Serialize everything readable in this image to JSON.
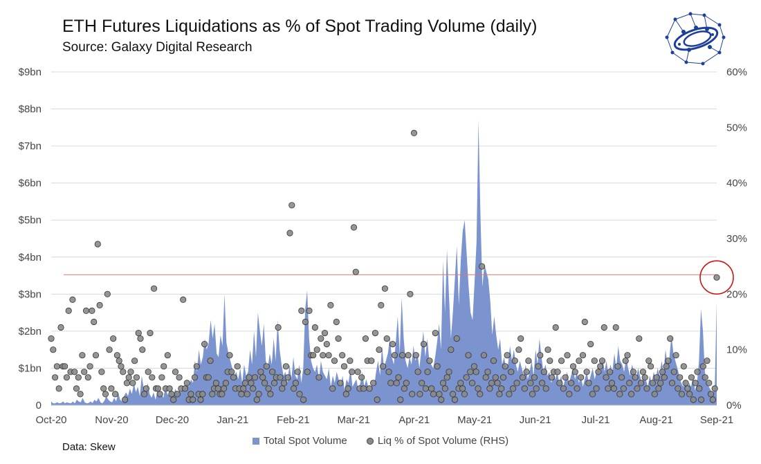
{
  "chart_data": {
    "type": "area+scatter",
    "title": "ETH Futures Liquidations as % of Spot Trading Volume (daily)",
    "subtitle": "Source: Galaxy Digital Research",
    "source_note": "Data: Skew",
    "categories": [
      "Oct-20",
      "Nov-20",
      "Dec-20",
      "Jan-21",
      "Feb-21",
      "Mar-21",
      "Apr-21",
      "May-21",
      "Jun-21",
      "Jul-21",
      "Aug-21",
      "Sep-21"
    ],
    "y_left": {
      "ticks": [
        "0",
        "$1bn",
        "$2bn",
        "$3bn",
        "$4bn",
        "$5bn",
        "$6bn",
        "$7bn",
        "$8bn",
        "$9bn"
      ],
      "range": [
        0,
        9
      ],
      "unit": "bn"
    },
    "y_right": {
      "ticks": [
        "0%",
        "10%",
        "20%",
        "30%",
        "40%",
        "50%",
        "60%"
      ],
      "range": [
        0,
        60
      ],
      "unit": "%"
    },
    "reference_line_pct": 23.5,
    "highlight_pct": 23,
    "legend": [
      "Total Spot Volume",
      "Liq % of Spot Volume (RHS)"
    ],
    "colors": {
      "area": "#7b93cf",
      "dot_fill": "#8a8a8a",
      "dot_stroke": "#333333",
      "ref_line": "#e07575",
      "highlight": "#cc1111"
    },
    "series": [
      {
        "name": "Total Spot Volume",
        "axis": "left",
        "values": [
          0.1,
          0.05,
          0.05,
          0.08,
          0.05,
          0.06,
          0.1,
          0.05,
          0.08,
          0.06,
          0.05,
          0.1,
          0.05,
          0.15,
          0.1,
          0.08,
          0.2,
          0.08,
          0.05,
          0.06,
          0.1,
          0.06,
          0.15,
          0.1,
          0.2,
          0.08,
          0.05,
          0.12,
          0.25,
          0.15,
          0.1,
          0.08,
          0.2,
          0.1,
          0.35,
          0.15,
          0.1,
          0.25,
          0.35,
          0.25,
          0.45,
          0.3,
          0.6,
          0.35,
          0.5,
          0.25,
          0.8,
          0.45,
          0.3,
          0.6,
          0.3,
          0.2,
          0.35,
          0.15,
          0.4,
          0.25,
          0.3,
          0.2,
          0.5,
          0.3,
          0.25,
          0.5,
          0.2,
          0.45,
          0.3,
          0.4,
          0.35,
          0.5,
          0.45,
          0.6,
          0.5,
          0.7,
          0.6,
          1.2,
          0.9,
          1.5,
          1.1,
          1.3,
          1.8,
          1.5,
          1.7,
          2.3,
          1.8,
          2.2,
          1.4,
          1.3,
          1.9,
          1.6,
          3.0,
          1.7,
          1.4,
          1.2,
          1.0,
          0.8,
          0.9,
          0.7,
          1.0,
          0.6,
          1.1,
          0.8,
          0.9,
          1.5,
          1.1,
          2.0,
          1.3,
          2.5,
          2.0,
          1.6,
          2.2,
          1.2,
          1.0,
          1.4,
          1.1,
          1.8,
          1.2,
          2.3,
          1.5,
          1.1,
          0.8,
          0.9,
          0.6,
          1.1,
          0.7,
          1.3,
          0.8,
          0.7,
          1.1,
          0.6,
          1.0,
          2.6,
          3.1,
          1.8,
          1.2,
          1.0,
          0.9,
          1.1,
          0.7,
          1.2,
          0.9,
          0.8,
          0.7,
          1.0,
          0.5,
          0.8,
          0.6,
          0.9,
          0.7,
          0.5,
          0.8,
          0.4,
          0.7,
          0.6,
          1.0,
          0.5,
          0.6,
          0.7,
          0.4,
          0.6,
          0.9,
          0.5,
          0.7,
          0.5,
          0.4,
          0.6,
          0.5,
          0.9,
          1.2,
          0.8,
          1.6,
          1.0,
          1.2,
          1.4,
          1.8,
          1.3,
          1.1,
          1.7,
          2.4,
          1.4,
          2.9,
          1.8,
          1.2,
          1.0,
          1.3,
          1.1,
          1.6,
          1.2,
          1.4,
          1.0,
          1.5,
          2.0,
          1.3,
          1.8,
          1.2,
          1.1,
          1.0,
          1.3,
          1.7,
          2.2,
          1.5,
          3.9,
          2.5,
          4.2,
          3.0,
          1.8,
          2.5,
          3.4,
          4.3,
          2.7,
          3.9,
          4.7,
          5.0,
          4.1,
          3.2,
          2.5,
          2.3,
          3.3,
          4.4,
          7.7,
          5.1,
          3.2,
          3.8,
          3.6,
          3.4,
          2.8,
          1.9,
          2.4,
          1.9,
          1.5,
          1.8,
          1.1,
          1.3,
          1.0,
          1.1,
          1.6,
          1.2,
          1.5,
          1.1,
          0.9,
          1.2,
          1.0,
          0.8,
          1.1,
          0.7,
          0.9,
          1.2,
          0.8,
          1.5,
          1.1,
          1.8,
          1.3,
          0.9,
          1.1,
          0.8,
          0.9,
          0.6,
          0.8,
          0.7,
          0.9,
          0.6,
          0.8,
          0.5,
          0.7,
          0.9,
          0.6,
          0.8,
          1.0,
          0.7,
          0.9,
          0.6,
          0.8,
          0.5,
          0.7,
          0.9,
          0.6,
          0.8,
          1.0,
          0.7,
          0.9,
          1.1,
          0.8,
          1.3,
          0.9,
          1.2,
          0.8,
          1.1,
          0.9,
          1.4,
          1.0,
          1.6,
          1.2,
          1.1,
          0.9,
          1.3,
          1.0,
          0.8,
          1.1,
          0.9,
          0.7,
          1.0,
          0.8,
          0.6,
          0.9,
          0.7,
          0.5,
          0.8,
          0.6,
          0.9,
          0.7,
          1.0,
          0.8,
          1.2,
          0.9,
          1.5,
          1.1,
          1.3,
          1.9,
          1.4,
          1.2,
          1.0,
          0.8,
          0.6,
          0.5,
          0.7,
          0.4,
          0.6,
          0.5,
          0.8,
          0.4,
          0.6,
          1.2,
          2.6,
          2.0,
          0.9,
          0.6,
          0.5,
          0.4,
          0.3,
          0.5,
          2.8
        ]
      },
      {
        "name": "Liq % of Spot Volume (RHS)",
        "axis": "right",
        "values": [
          12,
          10,
          5,
          7,
          3,
          14,
          7,
          7,
          5,
          17,
          6,
          19,
          6,
          3,
          5,
          2,
          9,
          6,
          17,
          5,
          7,
          17,
          15,
          9,
          29,
          18,
          6,
          3,
          2,
          20,
          10,
          3,
          12,
          2,
          9,
          8,
          7,
          6,
          1,
          4,
          5,
          6,
          4,
          8,
          5,
          13,
          12,
          10,
          2,
          3,
          6,
          13,
          5,
          21,
          3,
          3,
          2,
          5,
          7,
          3,
          9,
          3,
          2,
          1,
          6,
          2,
          5,
          3,
          19,
          3,
          4,
          1,
          2,
          1,
          5,
          7,
          2,
          1,
          2,
          11,
          5,
          5,
          8,
          2,
          3,
          4,
          3,
          2,
          2,
          3,
          4,
          6,
          9,
          6,
          5,
          3,
          7,
          3,
          2,
          3,
          4,
          2,
          5,
          4,
          3,
          5,
          1,
          2,
          6,
          5,
          4,
          7,
          3,
          2,
          6,
          4,
          5,
          14,
          5,
          3,
          4,
          7,
          5,
          31,
          36,
          3,
          4,
          6,
          2,
          17,
          1,
          15,
          6,
          17,
          9,
          9,
          14,
          10,
          5,
          12,
          9,
          13,
          11,
          9,
          18,
          3,
          8,
          15,
          12,
          4,
          9,
          7,
          2,
          3,
          8,
          6,
          32,
          24,
          6,
          3,
          5,
          3,
          12,
          8,
          3,
          8,
          4,
          13,
          1,
          10,
          18,
          7,
          21,
          12,
          6,
          4,
          11,
          9,
          4,
          5,
          1,
          9,
          3,
          4,
          9,
          20,
          2,
          49,
          9,
          6,
          2,
          4,
          11,
          3,
          6,
          8,
          3,
          2,
          13,
          7,
          2,
          1,
          4,
          3,
          5,
          6,
          10,
          2,
          1,
          12,
          3,
          4,
          3,
          2,
          5,
          9,
          6,
          4,
          7,
          6,
          3,
          2,
          25,
          9,
          5,
          6,
          3,
          4,
          8,
          5,
          4,
          2,
          3,
          5,
          7,
          9,
          2,
          6,
          3,
          8,
          4,
          10,
          12,
          5,
          3,
          6,
          8,
          4,
          2,
          5,
          3,
          7,
          9,
          4,
          6,
          3,
          10,
          8,
          5,
          6,
          14,
          6,
          4,
          8,
          3,
          5,
          9,
          2,
          4,
          7,
          6,
          3,
          8,
          5,
          9,
          15,
          6,
          4,
          11,
          2,
          8,
          3,
          6,
          7,
          8,
          14,
          5,
          3,
          6,
          4,
          3,
          14,
          7,
          2,
          5,
          3,
          8,
          9,
          4,
          2,
          6,
          5,
          3,
          12,
          4,
          6,
          5,
          3,
          8,
          7,
          4,
          2,
          5,
          3,
          4,
          6,
          5,
          7,
          8,
          12,
          4,
          6,
          9,
          3,
          5,
          2,
          7,
          4,
          3,
          2,
          5,
          1,
          4,
          6,
          3,
          1,
          7,
          5,
          8,
          4,
          2,
          1,
          3,
          23
        ]
      }
    ]
  }
}
